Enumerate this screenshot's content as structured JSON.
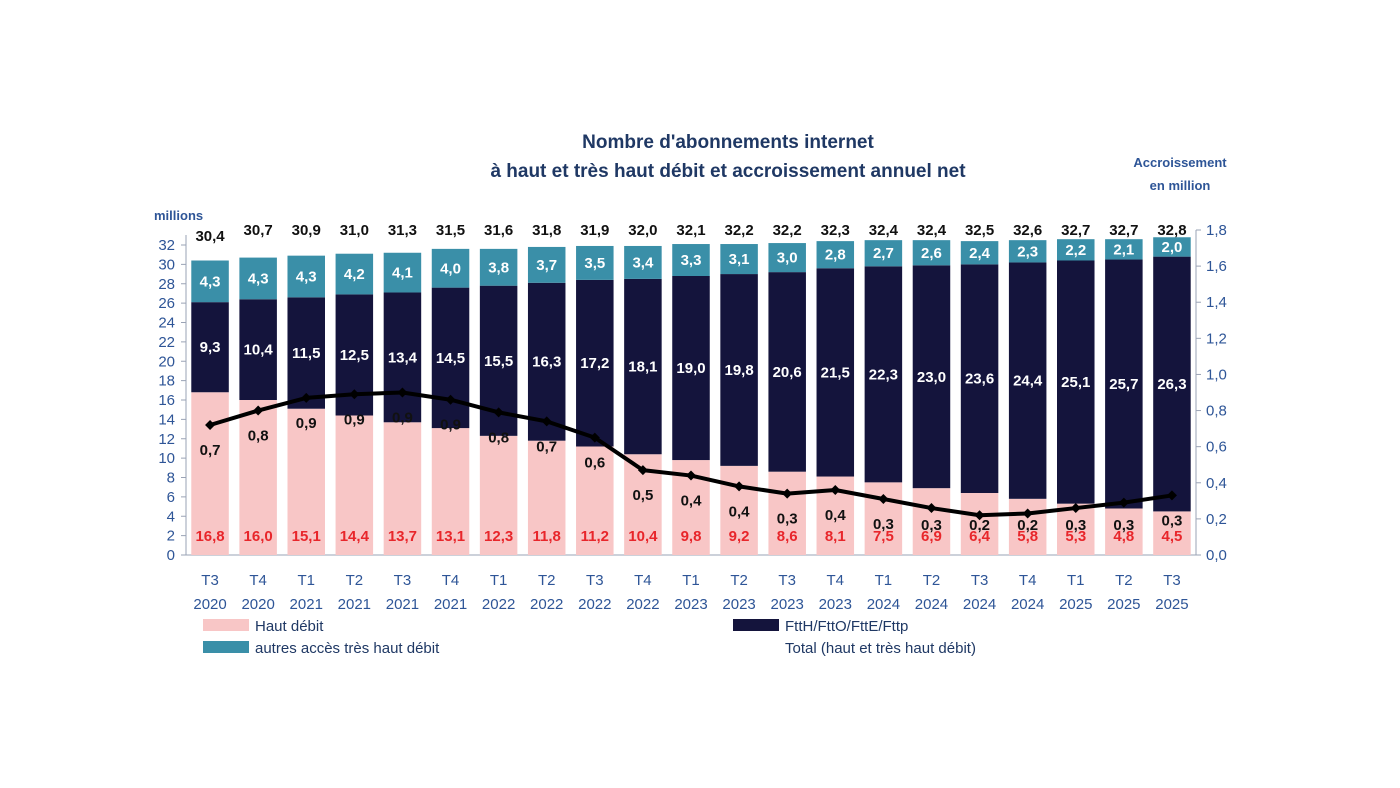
{
  "chart_data": {
    "type": "bar",
    "stacked": true,
    "title_lines": [
      "Nombre d'abonnements internet",
      "à haut et très haut débit et accroissement annuel net"
    ],
    "ylabel": "millions",
    "y2label_lines": [
      "Accroissement",
      "en million"
    ],
    "ylim": [
      0,
      32
    ],
    "y_ticks": [
      "0",
      "2",
      "4",
      "6",
      "8",
      "10",
      "12",
      "14",
      "16",
      "18",
      "20",
      "22",
      "24",
      "26",
      "28",
      "30",
      "32"
    ],
    "y2lim": [
      0,
      1.8
    ],
    "y2_ticks": [
      "0,0",
      "0,2",
      "0,4",
      "0,6",
      "0,8",
      "1,0",
      "1,2",
      "1,4",
      "1,6",
      "1,8"
    ],
    "categories": [
      [
        "T3",
        "2020"
      ],
      [
        "T4",
        "2020"
      ],
      [
        "T1",
        "2021"
      ],
      [
        "T2",
        "2021"
      ],
      [
        "T3",
        "2021"
      ],
      [
        "T4",
        "2021"
      ],
      [
        "T1",
        "2022"
      ],
      [
        "T2",
        "2022"
      ],
      [
        "T3",
        "2022"
      ],
      [
        "T4",
        "2022"
      ],
      [
        "T1",
        "2023"
      ],
      [
        "T2",
        "2023"
      ],
      [
        "T3",
        "2023"
      ],
      [
        "T4",
        "2023"
      ],
      [
        "T1",
        "2024"
      ],
      [
        "T2",
        "2024"
      ],
      [
        "T3",
        "2024"
      ],
      [
        "T4",
        "2024"
      ],
      [
        "T1",
        "2025"
      ],
      [
        "T2",
        "2025"
      ],
      [
        "T3",
        "2025"
      ]
    ],
    "series": [
      {
        "name": "Haut débit",
        "color": "#f8c6c6",
        "label_color": "#e8262b",
        "values": [
          16.8,
          16.0,
          15.1,
          14.4,
          13.7,
          13.1,
          12.3,
          11.8,
          11.2,
          10.4,
          9.8,
          9.2,
          8.6,
          8.1,
          7.5,
          6.9,
          6.4,
          5.8,
          5.3,
          4.8,
          4.5
        ],
        "labels": [
          "16,8",
          "16,0",
          "15,1",
          "14,4",
          "13,7",
          "13,1",
          "12,3",
          "11,8",
          "11,2",
          "10,4",
          "9,8",
          "9,2",
          "8,6",
          "8,1",
          "7,5",
          "6,9",
          "6,4",
          "5,8",
          "5,3",
          "4,8",
          "4,5"
        ]
      },
      {
        "name": "FttH/FttO/FttE/Fttp",
        "color": "#14143c",
        "label_color": "#ffffff",
        "values": [
          9.3,
          10.4,
          11.5,
          12.5,
          13.4,
          14.5,
          15.5,
          16.3,
          17.2,
          18.1,
          19.0,
          19.8,
          20.6,
          21.5,
          22.3,
          23.0,
          23.6,
          24.4,
          25.1,
          25.7,
          26.3
        ],
        "labels": [
          "9,3",
          "10,4",
          "11,5",
          "12,5",
          "13,4",
          "14,5",
          "15,5",
          "16,3",
          "17,2",
          "18,1",
          "19,0",
          "19,8",
          "20,6",
          "21,5",
          "22,3",
          "23,0",
          "23,6",
          "24,4",
          "25,1",
          "25,7",
          "26,3"
        ]
      },
      {
        "name": "autres accès très haut débit",
        "color": "#3a8fa8",
        "label_color": "#ffffff",
        "values": [
          4.3,
          4.3,
          4.3,
          4.2,
          4.1,
          4.0,
          3.8,
          3.7,
          3.5,
          3.4,
          3.3,
          3.1,
          3.0,
          2.8,
          2.7,
          2.6,
          2.4,
          2.3,
          2.2,
          2.1,
          2.0
        ],
        "labels": [
          "4,3",
          "4,3",
          "4,3",
          "4,2",
          "4,1",
          "4,0",
          "3,8",
          "3,7",
          "3,5",
          "3,4",
          "3,3",
          "3,1",
          "3,0",
          "2,8",
          "2,7",
          "2,6",
          "2,4",
          "2,3",
          "2,2",
          "2,1",
          "2,0"
        ]
      }
    ],
    "totals": {
      "values": [
        30.4,
        30.7,
        30.9,
        31.0,
        31.3,
        31.5,
        31.6,
        31.8,
        31.9,
        32.0,
        32.1,
        32.2,
        32.2,
        32.3,
        32.4,
        32.4,
        32.5,
        32.6,
        32.7,
        32.7,
        32.8
      ],
      "labels": [
        "30,4",
        "30,7",
        "30,9",
        "31,0",
        "31,3",
        "31,5",
        "31,6",
        "31,8",
        "31,9",
        "32,0",
        "32,1",
        "32,2",
        "32,2",
        "32,3",
        "32,4",
        "32,4",
        "32,5",
        "32,6",
        "32,7",
        "32,7",
        "32,8"
      ]
    },
    "line": {
      "name": "Total (haut et très haut débit)",
      "color": "#000000",
      "axis": "right",
      "values": [
        0.72,
        0.8,
        0.87,
        0.89,
        0.9,
        0.86,
        0.79,
        0.74,
        0.65,
        0.47,
        0.44,
        0.38,
        0.34,
        0.36,
        0.31,
        0.26,
        0.22,
        0.23,
        0.26,
        0.29,
        0.33
      ],
      "labels": [
        "0,7",
        "0,8",
        "0,9",
        "0,9",
        "0,9",
        "0,9",
        "0,8",
        "0,7",
        "0,6",
        "0,5",
        "0,4",
        "0,4",
        "0,3",
        "0,4",
        "0,3",
        "0,3",
        "0,2",
        "0,2",
        "0,3",
        "0,3",
        "0,3"
      ]
    },
    "legend": {
      "placement": "bottom",
      "items": [
        {
          "label": "Haut débit",
          "color": "#f8c6c6",
          "marker": "box"
        },
        {
          "label": "FttH/FttO/FttE/Fttp",
          "color": "#14143c",
          "marker": "box"
        },
        {
          "label": "autres accès très haut débit",
          "color": "#3a8fa8",
          "marker": "box"
        },
        {
          "label": "Total (haut et très haut débit)",
          "color": "#000000",
          "marker": "none"
        }
      ]
    }
  }
}
